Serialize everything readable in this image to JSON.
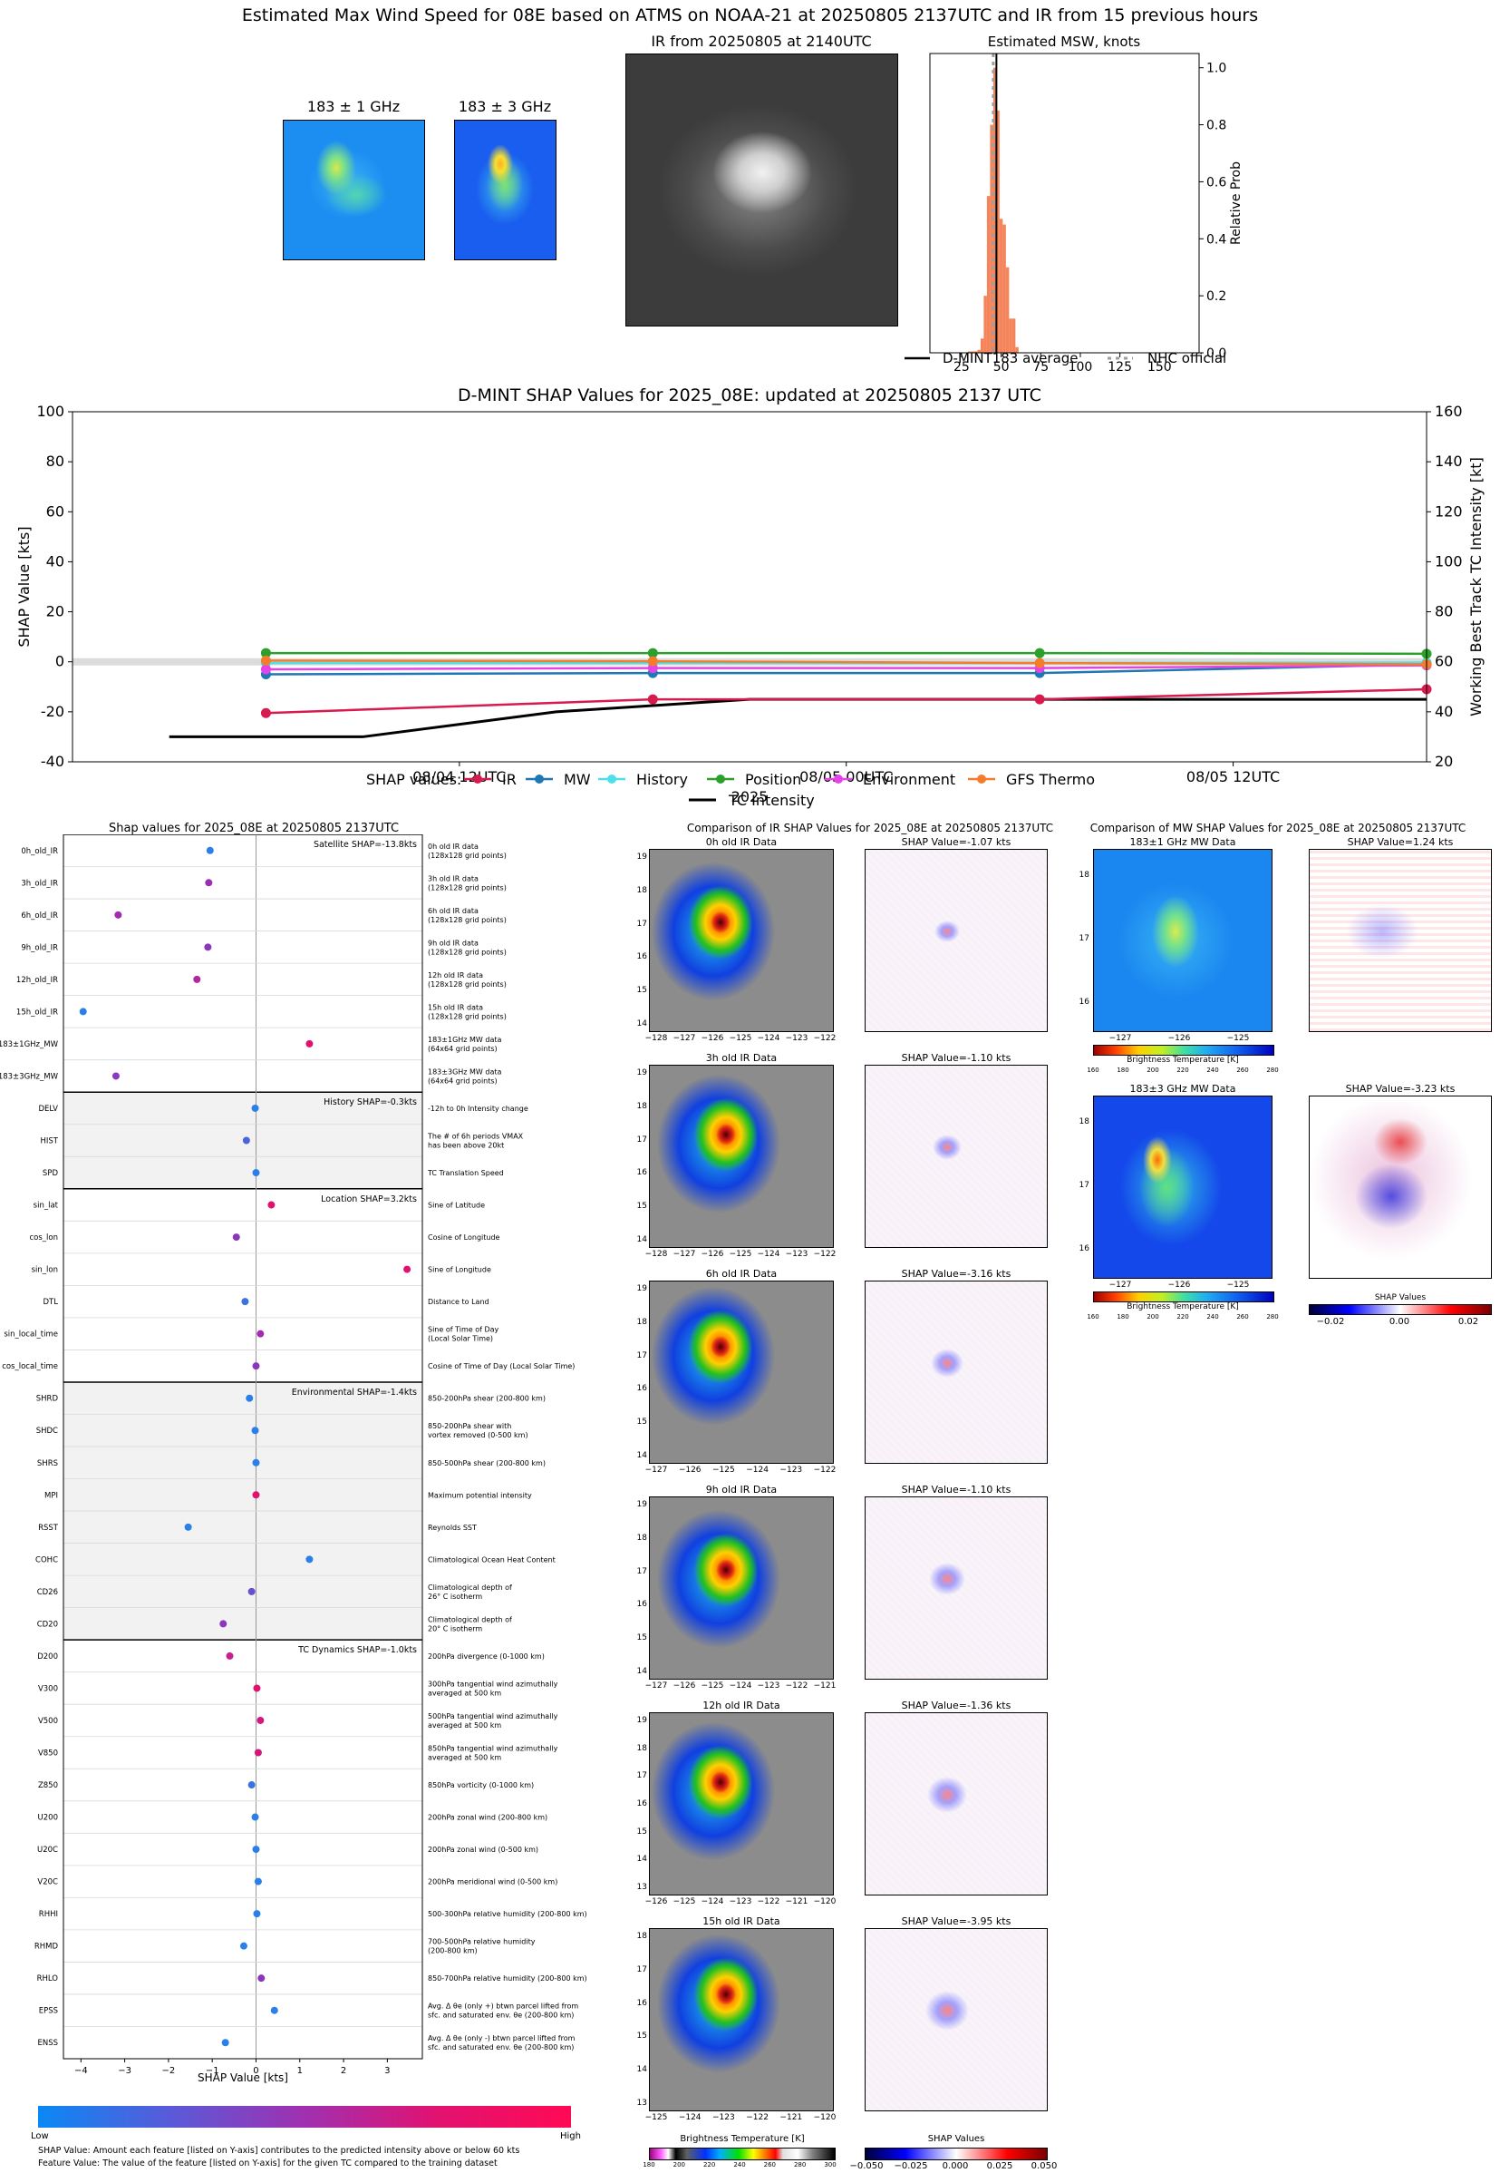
{
  "header": {
    "title": "Estimated Max Wind Speed for 08E based on ATMS on NOAA-21 at 20250805 2137UTC and IR from 15 previous hours"
  },
  "top_panels": {
    "mw1_title": "183 ± 1 GHz",
    "mw3_title": "183 ± 3 GHz",
    "ir_title": "IR from 20250805 at 2140UTC"
  },
  "hist_legend": {
    "avg": "D-MINT183 average",
    "nhc": "NHC official"
  },
  "timeline_legend": {
    "label": "SHAP values:",
    "tc": "TC Intensity"
  },
  "feature_chart": {
    "x_ticks": [
      "−4",
      "−3",
      "−2",
      "−1",
      "0",
      "1",
      "2",
      "3"
    ],
    "footnote1": "SHAP Value: Amount each feature [listed on Y-axis] contributes to the predicted intensity above or below 60 kts",
    "footnote2": "Feature Value: The value of the feature [listed on Y-axis] for the given TC compared to the training dataset",
    "colorbar_low": "Low",
    "colorbar_high": "High",
    "groups": [
      {
        "label": "Satellite SHAP=-13.8kts",
        "start": 0,
        "end": 8,
        "shade": false
      },
      {
        "label": "History SHAP=-0.3kts",
        "start": 8,
        "end": 11,
        "shade": true
      },
      {
        "label": "Location SHAP=3.2kts",
        "start": 11,
        "end": 17,
        "shade": false
      },
      {
        "label": "Environmental SHAP=-1.4kts",
        "start": 17,
        "end": 25,
        "shade": true
      },
      {
        "label": "TC Dynamics SHAP=-1.0kts",
        "start": 25,
        "end": 38,
        "shade": false
      }
    ],
    "features": [
      {
        "name": "0h_old_IR",
        "desc": [
          "0h old IR data",
          "(128x128 grid points)"
        ],
        "shap": -1.05,
        "c": "#2a7fe8"
      },
      {
        "name": "3h_old_IR",
        "desc": [
          "3h old IR data",
          "(128x128 grid points)"
        ],
        "shap": -1.08,
        "c": "#9a2fb5"
      },
      {
        "name": "6h_old_IR",
        "desc": [
          "6h old IR data",
          "(128x128 grid points)"
        ],
        "shap": -3.15,
        "c": "#a22bb0"
      },
      {
        "name": "9h_old_IR",
        "desc": [
          "9h old IR data",
          "(128x128 grid points)"
        ],
        "shap": -1.1,
        "c": "#8a36bd"
      },
      {
        "name": "12h_old_IR",
        "desc": [
          "12h old IR data",
          "(128x128 grid points)"
        ],
        "shap": -1.35,
        "c": "#b1279f"
      },
      {
        "name": "15h_old_IR",
        "desc": [
          "15h old IR data",
          "(128x128 grid points)"
        ],
        "shap": -3.95,
        "c": "#2a7fe8"
      },
      {
        "name": "183±1GHz_MW",
        "desc": [
          "183±1GHz MW data",
          "(64x64 grid points)"
        ],
        "shap": 1.22,
        "c": "#e0126e"
      },
      {
        "name": "183±3GHz_MW",
        "desc": [
          "183±3GHz MW data",
          "(64x64 grid points)"
        ],
        "shap": -3.2,
        "c": "#8b38bf"
      },
      {
        "name": "DELV",
        "desc": [
          "-12h to 0h Intensity change"
        ],
        "shap": -0.02,
        "c": "#2a7fe8"
      },
      {
        "name": "HIST",
        "desc": [
          "The # of 6h periods VMAX",
          "has been above 20kt"
        ],
        "shap": -0.22,
        "c": "#4d63d8"
      },
      {
        "name": "SPD",
        "desc": [
          "TC Translation Speed"
        ],
        "shap": 0.0,
        "c": "#2a7fe8"
      },
      {
        "name": "sin_lat",
        "desc": [
          "Sine of Latitude"
        ],
        "shap": 0.35,
        "c": "#e0126e"
      },
      {
        "name": "cos_lon",
        "desc": [
          "Cosine of Longitude"
        ],
        "shap": -0.45,
        "c": "#8a36bd"
      },
      {
        "name": "sin_lon",
        "desc": [
          "Sine of Longitude"
        ],
        "shap": 3.45,
        "c": "#e0126e"
      },
      {
        "name": "DTL",
        "desc": [
          "Distance to Land"
        ],
        "shap": -0.25,
        "c": "#3a73e0"
      },
      {
        "name": "sin_local_time",
        "desc": [
          "Sine of Time of Day",
          "(Local Solar Time)"
        ],
        "shap": 0.1,
        "c": "#a22bb0"
      },
      {
        "name": "cos_local_time",
        "desc": [
          "Cosine of Time of Day (Local Solar Time)"
        ],
        "shap": 0.0,
        "c": "#8a36bd"
      },
      {
        "name": "SHRD",
        "desc": [
          "850-200hPa shear (200-800 km)"
        ],
        "shap": -0.15,
        "c": "#2a7fe8"
      },
      {
        "name": "SHDC",
        "desc": [
          "850-200hPa shear with",
          "vortex removed (0-500 km)"
        ],
        "shap": -0.02,
        "c": "#2a7fe8"
      },
      {
        "name": "SHRS",
        "desc": [
          "850-500hPa shear (200-800 km)"
        ],
        "shap": 0.0,
        "c": "#2a7fe8"
      },
      {
        "name": "MPI",
        "desc": [
          "Maximum potential intensity"
        ],
        "shap": 0.0,
        "c": "#e0126e"
      },
      {
        "name": "RSST",
        "desc": [
          "Reynolds SST"
        ],
        "shap": -1.55,
        "c": "#2a7fe8"
      },
      {
        "name": "COHC",
        "desc": [
          "Climatological Ocean Heat Content"
        ],
        "shap": 1.22,
        "c": "#2a7fe8"
      },
      {
        "name": "CD26",
        "desc": [
          "Climatological depth of",
          "26° C isotherm"
        ],
        "shap": -0.1,
        "c": "#6a4fd0"
      },
      {
        "name": "CD20",
        "desc": [
          "Climatological depth of",
          "20° C isotherm"
        ],
        "shap": -0.75,
        "c": "#8a36bd"
      },
      {
        "name": "D200",
        "desc": [
          "200hPa divergence (0-1000 km)"
        ],
        "shap": -0.6,
        "c": "#c4208f"
      },
      {
        "name": "V300",
        "desc": [
          "300hPa tangential wind azimuthally",
          "averaged at 500 km"
        ],
        "shap": 0.02,
        "c": "#e0126e"
      },
      {
        "name": "V500",
        "desc": [
          "500hPa tangential wind azimuthally",
          "averaged at 500 km"
        ],
        "shap": 0.1,
        "c": "#d4177c"
      },
      {
        "name": "V850",
        "desc": [
          "850hPa tangential wind azimuthally",
          "averaged at 500 km"
        ],
        "shap": 0.05,
        "c": "#d4177c"
      },
      {
        "name": "Z850",
        "desc": [
          "850hPa vorticity (0-1000 km)"
        ],
        "shap": -0.1,
        "c": "#3a73e0"
      },
      {
        "name": "U200",
        "desc": [
          "200hPa zonal wind (200-800 km)"
        ],
        "shap": -0.02,
        "c": "#2a7fe8"
      },
      {
        "name": "U20C",
        "desc": [
          "200hPa zonal wind (0-500 km)"
        ],
        "shap": 0.0,
        "c": "#2a7fe8"
      },
      {
        "name": "V20C",
        "desc": [
          "200hPa meridional wind (0-500 km)"
        ],
        "shap": 0.05,
        "c": "#2a7fe8"
      },
      {
        "name": "RHHI",
        "desc": [
          "500-300hPa relative humidity (200-800 km)"
        ],
        "shap": 0.02,
        "c": "#2a7fe8"
      },
      {
        "name": "RHMD",
        "desc": [
          "700-500hPa relative humidity",
          "(200-800 km)"
        ],
        "shap": -0.28,
        "c": "#2a7fe8"
      },
      {
        "name": "RHLO",
        "desc": [
          "850-700hPa relative humidity (200-800 km)"
        ],
        "shap": 0.12,
        "c": "#8a36bd"
      },
      {
        "name": "EPSS",
        "desc": [
          "Avg. Δ θe (only +) btwn parcel lifted from",
          "sfc. and saturated env. θe (200-800 km)"
        ],
        "shap": 0.42,
        "c": "#2a7fe8"
      },
      {
        "name": "ENSS",
        "desc": [
          "Avg. Δ θe (only -) btwn parcel lifted from",
          "sfc. and saturated env. θe (200-800 km)"
        ],
        "shap": -0.7,
        "c": "#2a7fe8"
      }
    ]
  },
  "ir_comparison": {
    "title": "Comparison of IR SHAP Values for 2025_08E at 20250805 2137UTC",
    "colorbar_label": "Brightness Temperature [K]",
    "shap_cbar_label": "SHAP Values",
    "bt_ticks": [
      "180",
      "200",
      "220",
      "240",
      "260",
      "280",
      "300"
    ],
    "shap_ticks": [
      "−0.050",
      "−0.025",
      "0.000",
      "0.025",
      "0.050"
    ],
    "panels": [
      {
        "data_title": "0h old IR Data",
        "shap_title": "SHAP Value=-1.07 kts",
        "lat": [
          "19",
          "18",
          "17",
          "16",
          "15",
          "14"
        ],
        "lon": [
          "−128",
          "−127",
          "−126",
          "−125",
          "−124",
          "−123",
          "−122"
        ]
      },
      {
        "data_title": "3h old IR Data",
        "shap_title": "SHAP Value=-1.10 kts",
        "lat": [
          "19",
          "18",
          "17",
          "16",
          "15",
          "14"
        ],
        "lon": [
          "−128",
          "−127",
          "−126",
          "−125",
          "−124",
          "−123",
          "−122"
        ]
      },
      {
        "data_title": "6h old IR Data",
        "shap_title": "SHAP Value=-3.16 kts",
        "lat": [
          "19",
          "18",
          "17",
          "16",
          "15",
          "14"
        ],
        "lon": [
          "−127",
          "−126",
          "−125",
          "−124",
          "−123",
          "−122"
        ]
      },
      {
        "data_title": "9h old IR Data",
        "shap_title": "SHAP Value=-1.10 kts",
        "lat": [
          "19",
          "18",
          "17",
          "16",
          "15",
          "14"
        ],
        "lon": [
          "−127",
          "−126",
          "−125",
          "−124",
          "−123",
          "−122",
          "−121"
        ]
      },
      {
        "data_title": "12h old IR Data",
        "shap_title": "SHAP Value=-1.36 kts",
        "lat": [
          "19",
          "18",
          "17",
          "16",
          "15",
          "14",
          "13"
        ],
        "lon": [
          "−126",
          "−125",
          "−124",
          "−123",
          "−122",
          "−121",
          "−120"
        ]
      },
      {
        "data_title": "15h old IR Data",
        "shap_title": "SHAP Value=-3.95 kts",
        "lat": [
          "18",
          "17",
          "16",
          "15",
          "14",
          "13"
        ],
        "lon": [
          "−125",
          "−124",
          "−123",
          "−122",
          "−121",
          "−120"
        ]
      }
    ]
  },
  "mw_comparison": {
    "title": "Comparison of MW SHAP Values for 2025_08E at 20250805 2137UTC",
    "colorbar_label": "Brightness Temperature [K]",
    "shap_cbar_label": "SHAP Values",
    "bt_ticks": [
      "160",
      "180",
      "200",
      "220",
      "240",
      "260",
      "280"
    ],
    "shap_ticks": [
      "−0.02",
      "0.00",
      "0.02"
    ],
    "panels": [
      {
        "data_title": "183±1 GHz MW Data",
        "shap_title": "SHAP Value=1.24 kts",
        "lat": [
          "18",
          "17",
          "16"
        ],
        "lon": [
          "−127",
          "−126",
          "−125"
        ]
      },
      {
        "data_title": "183±3 GHz MW Data",
        "shap_title": "SHAP Value=-3.23 kts",
        "lat": [
          "18",
          "17",
          "16"
        ],
        "lon": [
          "−127",
          "−126",
          "−125"
        ]
      }
    ]
  },
  "chart_data": [
    {
      "type": "bar",
      "title": "Estimated MSW, knots",
      "xlabel": "",
      "ylabel": "Relative Prob",
      "xlim": [
        5,
        175
      ],
      "ylim": [
        0,
        1.05
      ],
      "xticks": [
        25,
        50,
        75,
        100,
        125,
        150
      ],
      "yticks": [
        0.0,
        0.2,
        0.4,
        0.6,
        0.8,
        1.0
      ],
      "bin_width": 2,
      "bins": [
        {
          "x": 30,
          "p": 0.005
        },
        {
          "x": 32,
          "p": 0.005
        },
        {
          "x": 34,
          "p": 0.005
        },
        {
          "x": 36,
          "p": 0.01
        },
        {
          "x": 38,
          "p": 0.05
        },
        {
          "x": 40,
          "p": 0.2
        },
        {
          "x": 42,
          "p": 0.55
        },
        {
          "x": 44,
          "p": 0.8
        },
        {
          "x": 46,
          "p": 1.0
        },
        {
          "x": 48,
          "p": 0.85
        },
        {
          "x": 50,
          "p": 0.47
        },
        {
          "x": 52,
          "p": 0.45
        },
        {
          "x": 54,
          "p": 0.3
        },
        {
          "x": 56,
          "p": 0.12
        },
        {
          "x": 58,
          "p": 0.12
        },
        {
          "x": 60,
          "p": 0.02
        }
      ],
      "avg": 47,
      "nhc": 45,
      "colors": {
        "bars": "#f4845a",
        "avg": "#000000",
        "nhc": "#9e9e9e"
      }
    },
    {
      "type": "line",
      "title": "D-MINT SHAP Values for 2025_08E: updated at 20250805 2137 UTC",
      "xlabel": "2025",
      "ylabel": "SHAP Value [kts]",
      "y2label": "Working Best Track TC Intensity [kt]",
      "ylim": [
        -40,
        100
      ],
      "y2lim": [
        20,
        160
      ],
      "yticks": [
        -40,
        -20,
        0,
        20,
        40,
        60,
        80,
        100
      ],
      "y2ticks": [
        20,
        40,
        60,
        80,
        100,
        120,
        140,
        160
      ],
      "x_tick_labels": [
        "08/04 12UTC",
        "08/05 00UTC",
        "08/05 12UTC"
      ],
      "x_hours": [
        -27,
        -15,
        -3,
        9
      ],
      "series": [
        {
          "name": "IR",
          "color": "#d81b4e",
          "values": [
            -20.5,
            -15,
            -15,
            -11
          ]
        },
        {
          "name": "MW",
          "color": "#1f77b4",
          "values": [
            -5,
            -4.5,
            -4.5,
            -1
          ]
        },
        {
          "name": "History",
          "color": "#4de0e8",
          "values": [
            -0.5,
            -0.5,
            -0.5,
            -0.3
          ]
        },
        {
          "name": "Position",
          "color": "#2ca02c",
          "values": [
            3.5,
            3.5,
            3.5,
            3.2
          ]
        },
        {
          "name": "Environment",
          "color": "#e643e6",
          "values": [
            -3,
            -2.5,
            -2.5,
            -1.4
          ]
        },
        {
          "name": "GFS Thermo",
          "color": "#f47d2b",
          "values": [
            0.5,
            0.2,
            -0.5,
            -1.0
          ]
        }
      ],
      "tc_intensity": {
        "name": "TC Intensity",
        "hours": [
          -30,
          -24,
          -18,
          -12,
          -6,
          0,
          6,
          9
        ],
        "values": [
          30,
          30,
          40,
          45,
          45,
          45,
          45,
          45
        ]
      }
    }
  ]
}
